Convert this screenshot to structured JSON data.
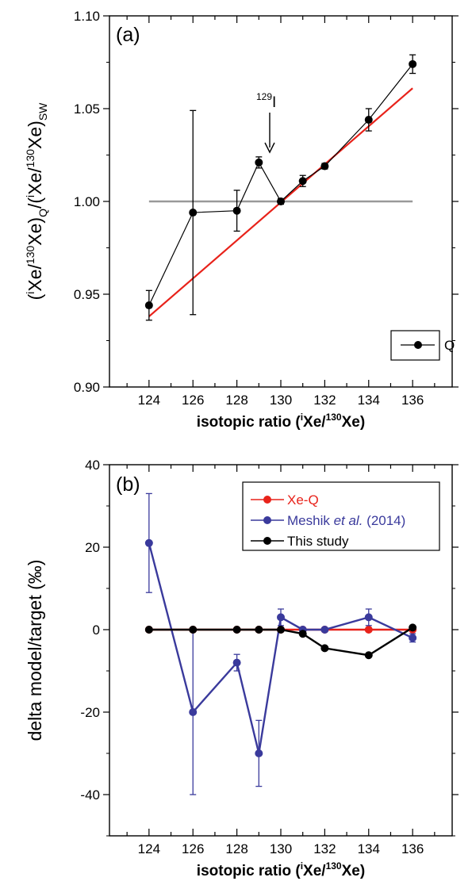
{
  "chart_data": [
    {
      "panel_label": "(a)",
      "type": "line",
      "xlabel": "isotopic ratio (iXe/130Xe)",
      "ylabel": "(iXe/130Xe)Q/(iXe/130Xe)SW",
      "xlim": [
        122.2,
        137.8
      ],
      "ylim": [
        0.9,
        1.1
      ],
      "x_ticks": [
        "124",
        "126",
        "128",
        "130",
        "132",
        "134",
        "136"
      ],
      "y_ticks": [
        "0.90",
        "0.95",
        "1.00",
        "1.05",
        "1.10"
      ],
      "annotation": "129I",
      "annotation_x": 129,
      "legend": [
        "Q"
      ],
      "series": [
        {
          "name": "Q",
          "color": "#000000",
          "x": [
            124,
            126,
            128,
            129,
            130,
            131,
            132,
            134,
            136
          ],
          "y": [
            0.944,
            0.994,
            0.995,
            1.021,
            1.0,
            1.011,
            1.019,
            1.044,
            1.074
          ],
          "err": [
            0.008,
            0.055,
            0.011,
            0.003,
            0.0015,
            0.003,
            0.0015,
            0.006,
            0.005
          ]
        }
      ],
      "reference_lines": [
        {
          "color": "#999999",
          "x": [
            124,
            136
          ],
          "y": [
            1.0,
            1.0
          ]
        },
        {
          "color": "#e8221a",
          "x": [
            124,
            136
          ],
          "y": [
            0.938,
            1.061
          ]
        }
      ]
    },
    {
      "panel_label": "(b)",
      "type": "line",
      "xlabel": "isotopic ratio (iXe/130Xe)",
      "ylabel": "delta model/target (‰)",
      "xlim": [
        122.2,
        137.8
      ],
      "ylim": [
        -50,
        40
      ],
      "x_ticks": [
        "124",
        "126",
        "128",
        "130",
        "132",
        "134",
        "136"
      ],
      "y_ticks": [
        "-40",
        "-20",
        "0",
        "20",
        "40"
      ],
      "legend": [
        "Xe-Q",
        "Meshik et al. (2014)",
        "This study"
      ],
      "series": [
        {
          "name": "Xe-Q",
          "color": "#e8221a",
          "x": [
            124,
            126,
            128,
            129,
            130,
            131,
            132,
            134,
            136
          ],
          "y": [
            0,
            0,
            0,
            0,
            0,
            0,
            0,
            0,
            0
          ]
        },
        {
          "name": "Meshik et al. (2014)",
          "color": "#3a3a9c",
          "x": [
            124,
            126,
            128,
            129,
            130,
            131,
            132,
            134,
            136
          ],
          "y": [
            21,
            -20,
            -8,
            -30,
            3,
            0,
            0,
            3,
            -2
          ],
          "err": [
            12,
            20,
            2,
            8,
            2,
            0,
            0,
            2,
            1
          ]
        },
        {
          "name": "This study",
          "color": "#000000",
          "x": [
            124,
            126,
            128,
            129,
            130,
            131,
            132,
            134,
            136
          ],
          "y": [
            0,
            0,
            0,
            0,
            0,
            -1,
            -4.5,
            -6.2,
            0.5
          ]
        }
      ]
    }
  ]
}
